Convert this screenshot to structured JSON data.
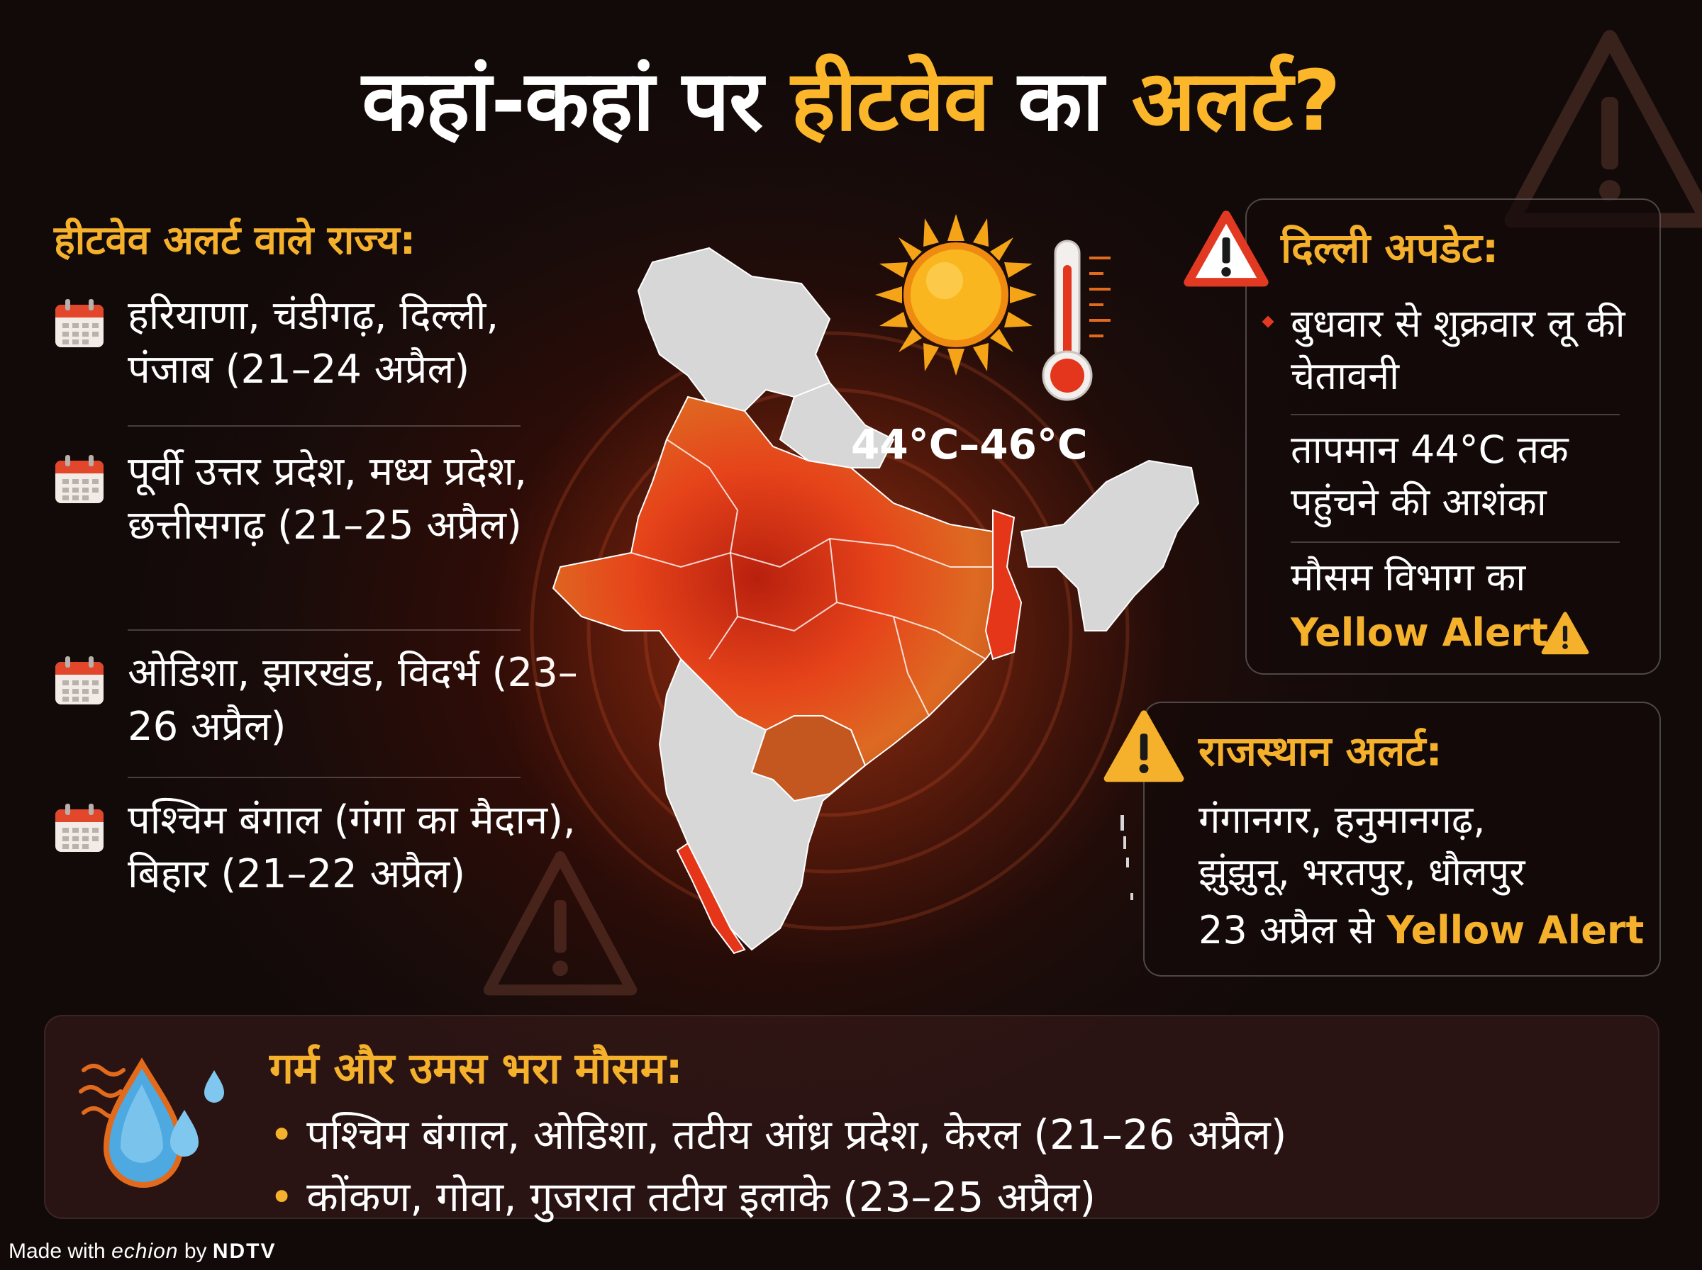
{
  "headline": {
    "part1": "कहां-कहां पर ",
    "highlight1": "हीटवेव",
    "part2": " का ",
    "highlight2": "अलर्ट?"
  },
  "left": {
    "heading": "हीटवेव अलर्ट वाले राज्य:",
    "items": [
      {
        "icon": "calendar-icon",
        "text": "हरियाणा, चंडीगढ़, दिल्ली, पंजाब (21–24 अप्रैल)"
      },
      {
        "icon": "calendar-icon",
        "text": "पूर्वी उत्तर प्रदेश, मध्य प्रदेश, छत्तीसगढ़ (21–25 अप्रैल)"
      },
      {
        "icon": "calendar-icon",
        "text": "ओडिशा, झारखंड, विदर्भ (23–26 अप्रैल)"
      },
      {
        "icon": "calendar-icon",
        "text": "पश्चिम बंगाल (गंगा का मैदान), बिहार (21–22 अप्रैल)"
      }
    ]
  },
  "center": {
    "temperature": "44°C–46°C",
    "icons": [
      "sun-icon",
      "thermometer-icon",
      "india-map"
    ]
  },
  "delhi": {
    "title": "दिल्ली अपडेट:",
    "line1": "बुधवार से शुक्रवार लू की चेतावनी",
    "line2": "तापमान 44°C तक पहुंचने की आशंका",
    "line3": "मौसम विभाग का",
    "line3_alert": "Yellow Alert"
  },
  "rajasthan": {
    "title": "राजस्थान अलर्ट:",
    "line1": "गंगानगर, हनुमानगढ़,",
    "line2": "झुंझुनू, भरतपुर, धौलपुर",
    "line3": "23 अप्रैल से ",
    "line3_alert": "Yellow Alert"
  },
  "bottom": {
    "title": "गर्म और उमस भरा मौसम:",
    "items": [
      "पश्चिम बंगाल, ओडिशा, तटीय आंध्र प्रदेश, केरल (21–26 अप्रैल)",
      "कोंकण, गोवा, गुजरात तटीय इलाके (23–25 अप्रैल)"
    ]
  },
  "footer": {
    "made_with": "Made with ",
    "brand1": "echion",
    "by": " by ",
    "brand2": "NDTV"
  },
  "colors": {
    "accent": "#f5b12b",
    "background": "#1a0c0a",
    "heat_red": "#e8391a",
    "heat_orange": "#e26a1c",
    "map_grey": "#d9d9d9"
  }
}
